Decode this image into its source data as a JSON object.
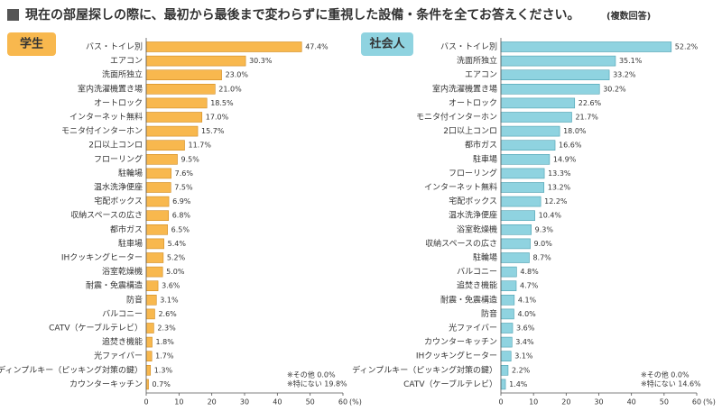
{
  "title": "現在の部屋探しの際に、最初から最後まで変わらずに重視した設備・条件を全てお答えください。",
  "title_note": "(複数回答)",
  "chart_data": [
    {
      "type": "bar",
      "label": "学生",
      "label_color": "#f8b84e",
      "color": "#f8b84e",
      "edge_color": "#d08a1e",
      "categories": [
        "バス・トイレ別",
        "エアコン",
        "洗面所独立",
        "室内洗濯機置き場",
        "オートロック",
        "インターネット無料",
        "モニタ付インターホン",
        "2口以上コンロ",
        "フローリング",
        "駐輪場",
        "温水洗浄便座",
        "宅配ボックス",
        "収納スペースの広さ",
        "都市ガス",
        "駐車場",
        "IHクッキングヒーター",
        "浴室乾燥機",
        "耐震・免震構造",
        "防音",
        "バルコニー",
        "CATV（ケーブルテレビ）",
        "追焚き機能",
        "光ファイバー",
        "ディンプルキー（ピッキング対策の鍵）",
        "カウンターキッチン"
      ],
      "values": [
        47.4,
        30.3,
        23.0,
        21.0,
        18.5,
        17.0,
        15.7,
        11.7,
        9.5,
        7.6,
        7.5,
        6.9,
        6.8,
        6.5,
        5.4,
        5.2,
        5.0,
        3.6,
        3.1,
        2.6,
        2.3,
        1.8,
        1.7,
        1.3,
        0.7
      ],
      "value_labels": [
        "47.4%",
        "30.3%",
        "23.0%",
        "21.0%",
        "18.5%",
        "17.0%",
        "15.7%",
        "11.7%",
        "9.5%",
        "7.6%",
        "7.5%",
        "6.9%",
        "6.8%",
        "6.5%",
        "5.4%",
        "5.2%",
        "5.0%",
        "3.6%",
        "3.1%",
        "2.6%",
        "2.3%",
        "1.8%",
        "1.7%",
        "1.3%",
        "0.7%"
      ],
      "xlim": [
        0,
        60
      ],
      "xticks": [
        0,
        10,
        20,
        30,
        40,
        50,
        60
      ],
      "unit": "(%)",
      "notes": [
        "※その他 0.0%",
        "※特にない 19.8%"
      ]
    },
    {
      "type": "bar",
      "label": "社会人",
      "label_color": "#8fd3e0",
      "color": "#8fd3e0",
      "edge_color": "#4a9fb0",
      "categories": [
        "バス・トイレ別",
        "洗面所独立",
        "エアコン",
        "室内洗濯機置き場",
        "オートロック",
        "モニタ付インターホン",
        "2口以上コンロ",
        "都市ガス",
        "駐車場",
        "フローリング",
        "インターネット無料",
        "宅配ボックス",
        "温水洗浄便座",
        "浴室乾燥機",
        "収納スペースの広さ",
        "駐輪場",
        "バルコニー",
        "追焚き機能",
        "耐震・免震構造",
        "防音",
        "光ファイバー",
        "カウンターキッチン",
        "IHクッキングヒーター",
        "ディンプルキー（ピッキング対策の鍵）",
        "CATV（ケーブルテレビ）"
      ],
      "values": [
        52.2,
        35.1,
        33.2,
        30.2,
        22.6,
        21.7,
        18.0,
        16.6,
        14.9,
        13.3,
        13.2,
        12.2,
        10.4,
        9.3,
        9.0,
        8.7,
        4.8,
        4.7,
        4.1,
        4.0,
        3.6,
        3.4,
        3.1,
        2.2,
        1.4
      ],
      "value_labels": [
        "52.2%",
        "35.1%",
        "33.2%",
        "30.2%",
        "22.6%",
        "21.7%",
        "18.0%",
        "16.6%",
        "14.9%",
        "13.3%",
        "13.2%",
        "12.2%",
        "10.4%",
        "9.3%",
        "9.0%",
        "8.7%",
        "4.8%",
        "4.7%",
        "4.1%",
        "4.0%",
        "3.6%",
        "3.4%",
        "3.1%",
        "2.2%",
        "1.4%"
      ],
      "xlim": [
        0,
        60
      ],
      "xticks": [
        0,
        10,
        20,
        30,
        40,
        50,
        60
      ],
      "unit": "(%)",
      "notes": [
        "※その他 0.0%",
        "※特にない 14.6%"
      ]
    }
  ]
}
